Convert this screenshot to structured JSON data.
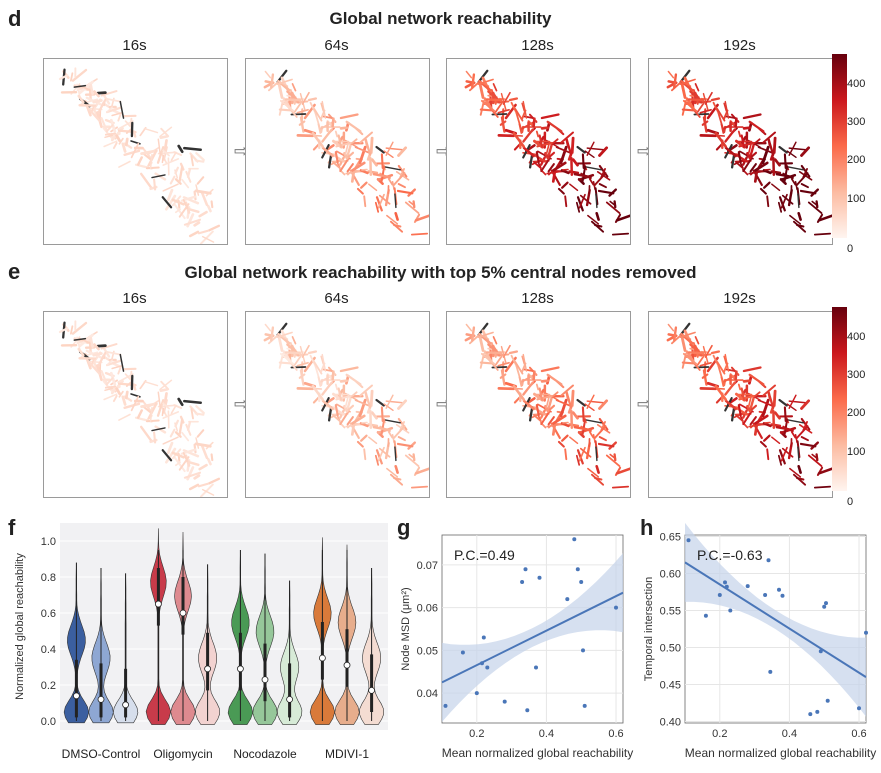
{
  "panel_d": {
    "letter": "d",
    "title": "Global network reachability",
    "timepoints": [
      "16s",
      "64s",
      "128s",
      "192s"
    ],
    "colorbar": {
      "ticks": [
        0,
        100,
        200,
        300,
        400
      ],
      "low_color": "#fff5f0",
      "high_color": "#67000d"
    },
    "intensity": [
      0.06,
      0.35,
      0.85,
      0.95
    ]
  },
  "panel_e": {
    "letter": "e",
    "title": "Global network reachability with top 5% central nodes removed",
    "timepoints": [
      "16s",
      "64s",
      "128s",
      "192s"
    ],
    "colorbar": {
      "ticks": [
        0,
        100,
        200,
        300,
        400
      ],
      "low_color": "#fff5f0",
      "high_color": "#67000d"
    },
    "intensity": [
      0.06,
      0.25,
      0.5,
      0.75
    ]
  },
  "chart_data": [
    {
      "panel": "f",
      "type": "violin",
      "ylabel": "Normalized global reachability",
      "ylim": [
        -0.05,
        1.1
      ],
      "yticks": [
        "0.0",
        "0.2",
        "0.4",
        "0.6",
        "0.8",
        "1.0"
      ],
      "ytick_values": [
        0.0,
        0.2,
        0.4,
        0.6,
        0.8,
        1.0
      ],
      "groups": [
        {
          "name": "DMSO-Control",
          "colors": [
            "#3b5fa0",
            "#8ea7d3",
            "#d6deec"
          ],
          "medians": [
            0.14,
            0.12,
            0.09
          ],
          "maxima": [
            0.88,
            0.85,
            0.82
          ],
          "mins": [
            -0.01,
            -0.01,
            -0.01
          ],
          "bimodal": [
            0.45,
            0.35,
            0.0
          ]
        },
        {
          "name": "Oligomycin",
          "colors": [
            "#c83b4a",
            "#de8a8f",
            "#f2d2d0"
          ],
          "medians": [
            0.65,
            0.6,
            0.29
          ],
          "maxima": [
            1.07,
            1.05,
            0.87
          ],
          "mins": [
            -0.02,
            -0.02,
            -0.02
          ],
          "bimodal": [
            0.78,
            0.7,
            0.35
          ]
        },
        {
          "name": "Nocodazole",
          "colors": [
            "#4a9a55",
            "#96c79a",
            "#d7ebd7"
          ],
          "medians": [
            0.29,
            0.23,
            0.12
          ],
          "maxima": [
            0.95,
            0.93,
            0.78
          ],
          "mins": [
            -0.02,
            -0.02,
            -0.02
          ],
          "bimodal": [
            0.55,
            0.5,
            0.3
          ]
        },
        {
          "name": "MDIVI-1",
          "colors": [
            "#d97a3a",
            "#e7ad8c",
            "#f4dcd2"
          ],
          "medians": [
            0.35,
            0.31,
            0.17
          ],
          "maxima": [
            1.02,
            0.98,
            0.85
          ],
          "mins": [
            -0.02,
            -0.02,
            -0.02
          ],
          "bimodal": [
            0.6,
            0.55,
            0.35
          ]
        }
      ]
    },
    {
      "panel": "g",
      "type": "scatter",
      "xlabel": "Mean normalized global reachability",
      "ylabel": "Node MSD (μm²)",
      "annotation": "P.C.=0.49",
      "xlim": [
        0.1,
        0.62
      ],
      "ylim": [
        0.033,
        0.077
      ],
      "xticks": [
        "0.2",
        "0.4",
        "0.6"
      ],
      "xtick_values": [
        0.2,
        0.4,
        0.6
      ],
      "yticks": [
        "0.04",
        "0.05",
        "0.06",
        "0.07"
      ],
      "ytick_values": [
        0.04,
        0.05,
        0.06,
        0.07
      ],
      "points": [
        [
          0.11,
          0.037
        ],
        [
          0.16,
          0.0495
        ],
        [
          0.2,
          0.04
        ],
        [
          0.215,
          0.047
        ],
        [
          0.22,
          0.053
        ],
        [
          0.23,
          0.046
        ],
        [
          0.28,
          0.038
        ],
        [
          0.33,
          0.066
        ],
        [
          0.34,
          0.069
        ],
        [
          0.345,
          0.036
        ],
        [
          0.37,
          0.046
        ],
        [
          0.38,
          0.067
        ],
        [
          0.46,
          0.062
        ],
        [
          0.48,
          0.076
        ],
        [
          0.49,
          0.069
        ],
        [
          0.5,
          0.066
        ],
        [
          0.505,
          0.05
        ],
        [
          0.51,
          0.037
        ],
        [
          0.6,
          0.06
        ]
      ],
      "fit": {
        "x": [
          0.1,
          0.62
        ],
        "y": [
          0.0425,
          0.0635
        ]
      }
    },
    {
      "panel": "h",
      "type": "scatter",
      "xlabel": "Mean normalized global reachability",
      "ylabel": "Temporal intersection",
      "annotation": "P.C.=-0.63",
      "xlim": [
        0.1,
        0.62
      ],
      "ylim": [
        0.398,
        0.652
      ],
      "xticks": [
        "0.2",
        "0.4",
        "0.6"
      ],
      "xtick_values": [
        0.2,
        0.4,
        0.6
      ],
      "yticks": [
        "0.40",
        "0.45",
        "0.50",
        "0.55",
        "0.60",
        "0.65"
      ],
      "ytick_values": [
        0.4,
        0.45,
        0.5,
        0.55,
        0.6,
        0.65
      ],
      "points": [
        [
          0.11,
          0.645
        ],
        [
          0.16,
          0.543
        ],
        [
          0.2,
          0.571
        ],
        [
          0.215,
          0.588
        ],
        [
          0.22,
          0.582
        ],
        [
          0.23,
          0.55
        ],
        [
          0.28,
          0.583
        ],
        [
          0.33,
          0.571
        ],
        [
          0.34,
          0.618
        ],
        [
          0.345,
          0.467
        ],
        [
          0.37,
          0.578
        ],
        [
          0.38,
          0.57
        ],
        [
          0.46,
          0.41
        ],
        [
          0.48,
          0.413
        ],
        [
          0.49,
          0.495
        ],
        [
          0.5,
          0.555
        ],
        [
          0.505,
          0.56
        ],
        [
          0.51,
          0.428
        ],
        [
          0.6,
          0.418
        ],
        [
          0.62,
          0.52
        ]
      ],
      "fit": {
        "x": [
          0.1,
          0.62
        ],
        "y": [
          0.615,
          0.46
        ]
      }
    }
  ]
}
